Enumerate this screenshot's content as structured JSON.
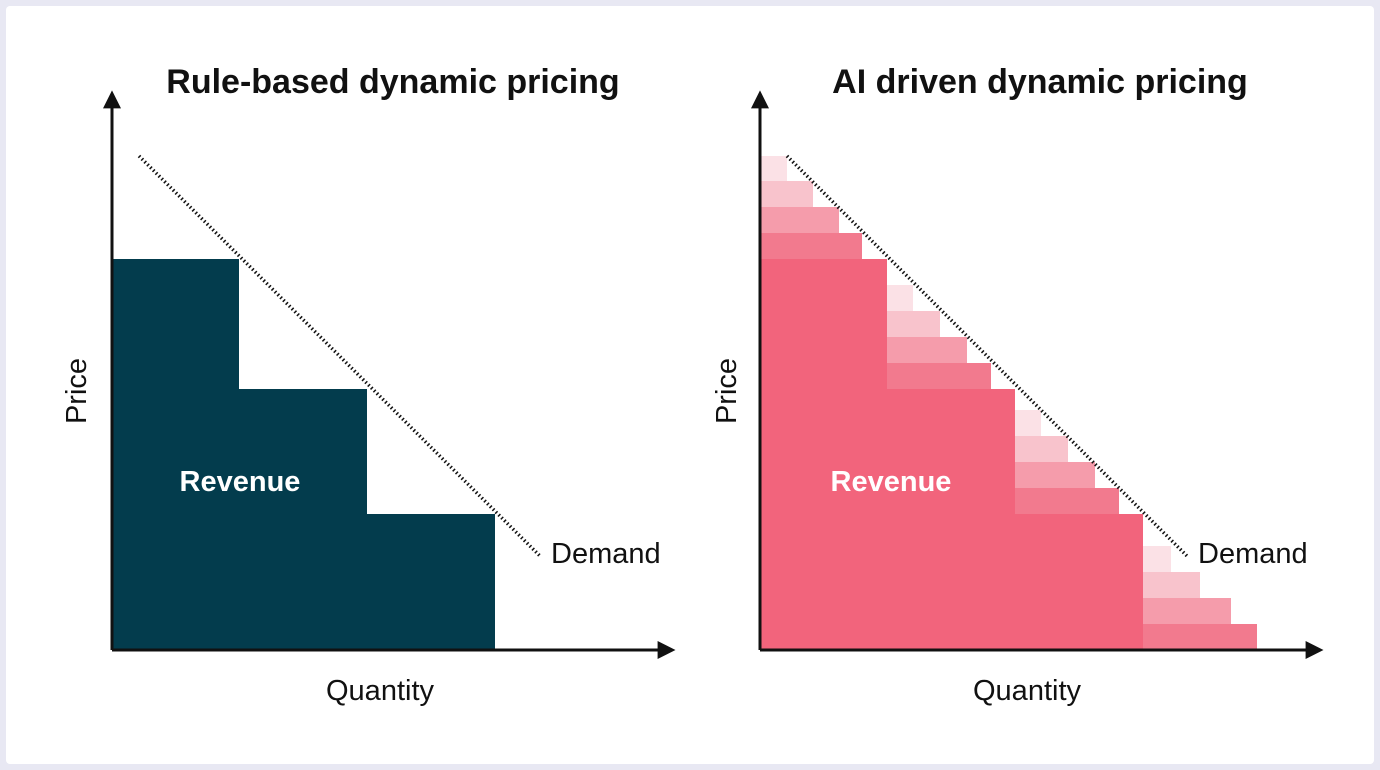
{
  "colors": {
    "background": "#e8e8f3",
    "panel": "#ffffff",
    "axis": "#111111",
    "rule_revenue": "#033c4d",
    "ai_revenue": "#f2647c",
    "ai_steps": [
      "#f27a8e",
      "#f59cab",
      "#f8c3cc",
      "#fbe1e6"
    ]
  },
  "left_panel": {
    "title": "Rule-based dynamic pricing",
    "x_axis_label": "Quantity",
    "y_axis_label": "Price",
    "curve_label": "Demand",
    "area_label": "Revenue"
  },
  "right_panel": {
    "title": "AI driven dynamic pricing",
    "x_axis_label": "Quantity",
    "y_axis_label": "Price",
    "curve_label": "Demand",
    "area_label": "Revenue"
  }
}
